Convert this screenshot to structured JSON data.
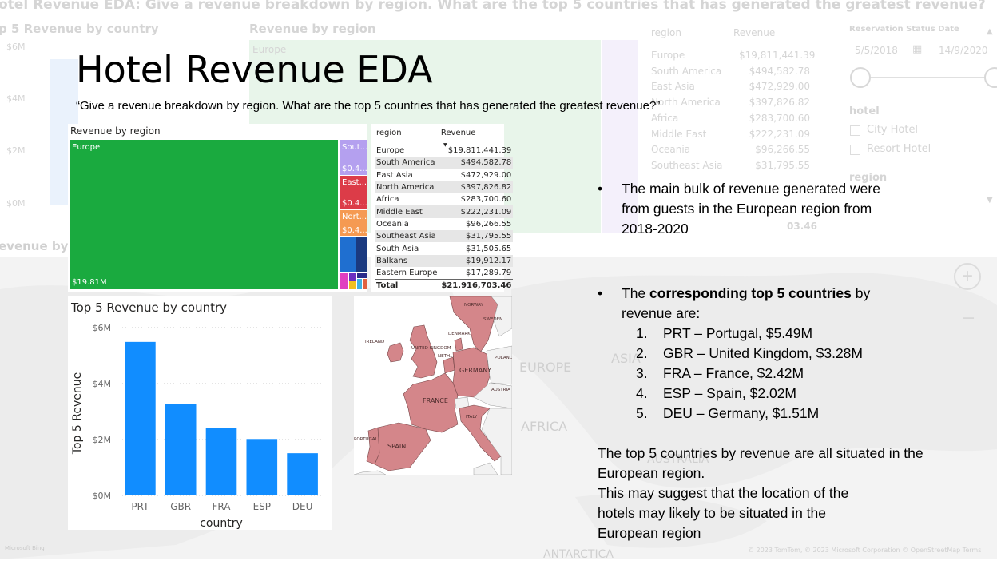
{
  "slide": {
    "title": "Hotel Revenue EDA",
    "subtitle": "“Give a revenue breakdown by region. What are the top 5 countries that has generated the greatest revenue?”"
  },
  "background": {
    "header": "otel Revenue EDA: Give a revenue breakdown by region. What are the top 5 countries that has generated the greatest revenue?",
    "bar_title": "p 5 Revenue by country",
    "treemap_title": "Revenue by region",
    "treemap_europe": "Europe",
    "y_ticks": [
      "$6M",
      "$4M",
      "$2M",
      "$0M"
    ],
    "table_region_header": "region",
    "table_revenue_header": "Revenue",
    "table_rows": [
      {
        "region": "Europe",
        "value": "$19,811,441.39"
      },
      {
        "region": "South America",
        "value": "$494,582.78"
      },
      {
        "region": "East Asia",
        "value": "$472,929.00"
      },
      {
        "region": "North America",
        "value": "$397,826.82"
      },
      {
        "region": "Africa",
        "value": "$283,700.60"
      },
      {
        "region": "Middle East",
        "value": "$222,231.09"
      },
      {
        "region": "Oceania",
        "value": "$96,266.55"
      },
      {
        "region": "Southeast Asia",
        "value": "$31,795.55"
      }
    ],
    "filter_label": "Reservation Status Date",
    "date_start": "5/5/2018",
    "date_end": "14/9/2020",
    "hotel_label": "hotel",
    "hotel_options": [
      "City Hotel",
      "Resort Hotel"
    ],
    "region_label": "region",
    "map_labels": [
      "EUROPE",
      "ASIA",
      "AFRICA",
      "AUSTRALIA",
      "ANTARCTICA"
    ],
    "bottom_left_title": "evenue by c",
    "total_fragment": "03.46",
    "copyright": "© 2023 TomTom, © 2023 Microsoft Corporation  © OpenStreetMap  Terms",
    "bing": "Microsoft Bing",
    "zoom_plus": "+",
    "zoom_minus": "−"
  },
  "treemap": {
    "title": "Revenue by region",
    "tiles": [
      {
        "label": "Europe",
        "value_label": "$19.81M",
        "color": "#1aaa3f"
      },
      {
        "label": "Sout...",
        "value_label": "$0.4...",
        "color": "#b4a0ef"
      },
      {
        "label": "East...",
        "value_label": "$0.4...",
        "color": "#dc3c48"
      },
      {
        "label": "Nort...",
        "value_label": "$0.4...",
        "color": "#f59a52"
      }
    ],
    "small_tile_colors": [
      "#1f6fd0",
      "#1b3a80",
      "#e040c0",
      "#6a2ec0",
      "#f0c020",
      "#2a2a8a",
      "#40b0e0",
      "#e06040"
    ]
  },
  "region_table": {
    "headers": {
      "region": "region",
      "revenue": "Revenue"
    },
    "rows": [
      {
        "region": "Europe",
        "revenue": "$19,811,441.39"
      },
      {
        "region": "South America",
        "revenue": "$494,582.78"
      },
      {
        "region": "East Asia",
        "revenue": "$472,929.00"
      },
      {
        "region": "North America",
        "revenue": "$397,826.82"
      },
      {
        "region": "Africa",
        "revenue": "$283,700.60"
      },
      {
        "region": "Middle East",
        "revenue": "$222,231.09"
      },
      {
        "region": "Oceania",
        "revenue": "$96,266.55"
      },
      {
        "region": "Southeast Asia",
        "revenue": "$31,795.55"
      },
      {
        "region": "South Asia",
        "revenue": "$31,505.65"
      },
      {
        "region": "Balkans",
        "revenue": "$19,912.17"
      },
      {
        "region": "Eastern Europe",
        "revenue": "$17,289.79"
      }
    ],
    "total": {
      "label": "Total",
      "revenue": "$21,916,703.46"
    }
  },
  "chart_data": {
    "type": "bar",
    "title": "Top 5 Revenue by country",
    "xlabel": "country",
    "ylabel": "Top 5 Revenue",
    "categories": [
      "PRT",
      "GBR",
      "FRA",
      "ESP",
      "DEU"
    ],
    "values": [
      5.49,
      3.28,
      2.42,
      2.02,
      1.51
    ],
    "unit": "$M",
    "ylim": [
      0,
      6
    ],
    "y_ticks": [
      {
        "value": 6,
        "label": "$6M"
      },
      {
        "value": 4,
        "label": "$4M"
      },
      {
        "value": 2,
        "label": "$2M"
      },
      {
        "value": 0,
        "label": "$0M"
      }
    ],
    "bar_color": "#118dff",
    "grid": "dotted horizontal"
  },
  "europe_map": {
    "country_labels": [
      "NORWAY",
      "SWEDEN",
      "IRELAND",
      "UNITED KINGDOM",
      "DENMARK",
      "NETH...",
      "GERMANY",
      "POLAND",
      "FRANCE",
      "AUSTRIA",
      "ITALY",
      "PORTUGAL",
      "SPAIN"
    ],
    "highlight_color": "#d4868a",
    "land_color": "#f2f2f2",
    "sea_color": "#ffffff"
  },
  "notes": {
    "bullet1": "The main bulk of revenue generated were from guests in the European region from 2018-2020",
    "bullet2_pre": "The ",
    "bullet2_bold": "corresponding top 5 countries",
    "bullet2_post": " by revenue are:",
    "top5": [
      {
        "n": "1.",
        "text": "PRT – Portugal, $5.49M"
      },
      {
        "n": "2.",
        "text": "GBR – United Kingdom, $3.28M"
      },
      {
        "n": "3.",
        "text": "FRA – France, $2.42M"
      },
      {
        "n": "4.",
        "text": "ESP – Spain, $2.02M"
      },
      {
        "n": "5.",
        "text": "DEU – Germany, $1.51M"
      }
    ],
    "conclusion_line1": "The top 5 countries by revenue are all situated in the European region.",
    "conclusion_line2": "This may suggest that the location of the hotels may likely to be situated in the European region"
  }
}
